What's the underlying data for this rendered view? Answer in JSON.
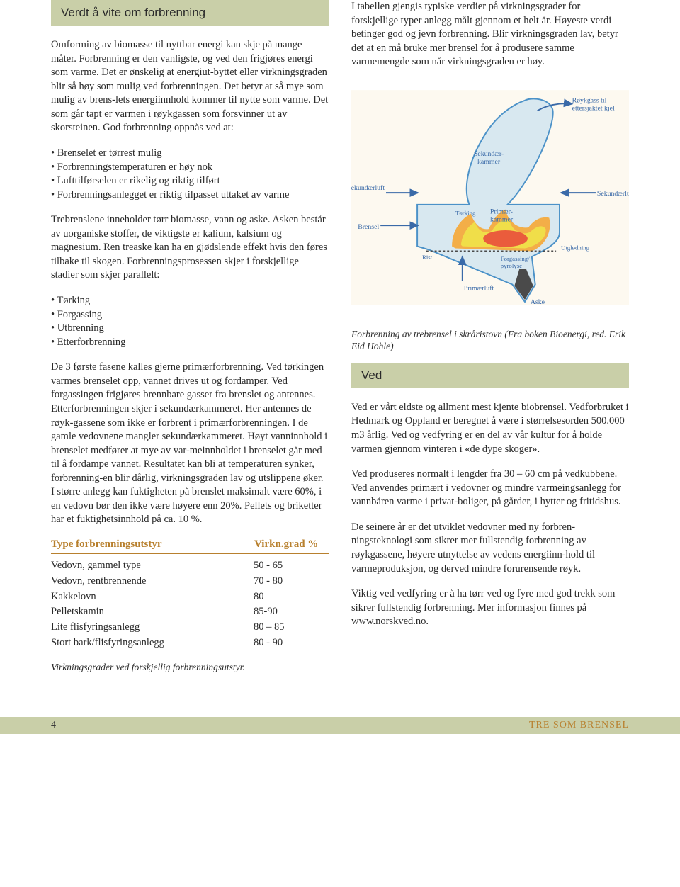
{
  "left": {
    "header": "Verdt å vite om forbrenning",
    "intro": "Omforming av biomasse til nyttbar energi kan skje på mange måter. Forbrenning er den vanligste, og ved den frigjøres energi som varme. Det er ønskelig at energiut-byttet eller virkningsgraden blir så høy som mulig ved forbrenningen. Det betyr at så mye som mulig av brens-lets energiinnhold kommer til nytte som varme. Det som går tapt er varmen i røykgassen som forsvinner ut av skorsteinen. God forbrenning oppnås ved at:",
    "bullets1": [
      "Brenselet er tørrest mulig",
      "Forbrenningstemperaturen er høy nok",
      "Lufttilførselen er rikelig og riktig tilført",
      "Forbrenningsanlegget er riktig tilpasset uttaket av varme"
    ],
    "para2": "Trebrenslene inneholder tørr biomasse, vann og aske. Asken består av uorganiske stoffer, de viktigste er kalium, kalsium og magnesium. Ren treaske kan ha en gjødslende effekt hvis den føres tilbake til skogen. Forbrenningsprosessen skjer i forskjellige stadier som skjer parallelt:",
    "bullets2": [
      "Tørking",
      "Forgassing",
      "Utbrenning",
      "Etterforbrenning"
    ],
    "para3": "De 3 første fasene kalles gjerne primærforbrenning. Ved tørkingen varmes brenselet opp, vannet drives ut og fordamper. Ved forgassingen frigjøres brennbare gasser fra brenslet og antennes. Etterforbrenningen skjer i sekundærkammeret. Her antennes de røyk-gassene som ikke er forbrent i primærforbrenningen. I de gamle vedovnene mangler sekundærkammeret. Høyt vanninnhold i brenselet medfører at mye av var-meinnholdet i brenselet går med til å fordampe vannet. Resultatet kan bli at temperaturen synker, forbrenning-en blir dårlig, virkningsgraden lav og utslippene øker. I større anlegg kan fuktigheten på brenslet maksimalt være 60%, i en vedovn bør den ikke være høyere enn 20%. Pellets og briketter har et fuktighetsinnhold på ca. 10 %.",
    "table": {
      "header_left": "Type forbrenningsutstyr",
      "header_right": "Virkn.grad %",
      "rows": [
        [
          "Vedovn, gammel type",
          "50 - 65"
        ],
        [
          "Vedovn, rentbrennende",
          "70 - 80"
        ],
        [
          "Kakkelovn",
          "80"
        ],
        [
          "Pelletskamin",
          "85-90"
        ],
        [
          "Lite flisfyringsanlegg",
          "80 – 85"
        ],
        [
          "Stort bark/flisfyringsanlegg",
          "80 - 90"
        ]
      ]
    },
    "table_caption": "Virkningsgrader ved forskjellig forbrenningsutstyr."
  },
  "right": {
    "intro": "I tabellen gjengis typiske verdier på virkningsgrader for forskjellige typer anlegg målt gjennom et helt år. Høyeste verdi betinger god og jevn forbrenning. Blir virkningsgraden lav, betyr det at en må bruke mer brensel for å produsere samme varmemengde som når virkningsgraden er høy.",
    "diagram": {
      "labels": {
        "roykgass": "Røykgass til ettersjaktet kjel",
        "sekundaerkammer": "Sekundær-kammer",
        "sekundaerluft_l": "Sekundærluft",
        "sekundaerluft_r": "Sekundærluft",
        "torking": "Tørking",
        "primaerkammer": "Primær-kammer",
        "brensel": "Brensel",
        "rist": "Rist",
        "forgassing": "Forgassing/pyrolyse",
        "utglodning": "Utglødning",
        "primaerluft": "Primærluft",
        "aske": "Aske"
      },
      "colors": {
        "bg": "#fdf9f0",
        "body": "#d8e8f0",
        "outline": "#4c92c8",
        "flame_outer": "#f5a83a",
        "flame_mid": "#f0e24a",
        "flame_inner": "#e84a3a",
        "ash": "#4a4a4a",
        "label_text": "#3a6aa8",
        "arrow": "#3a6aa8"
      }
    },
    "diagram_caption": "Forbrenning av trebrensel i skråristovn\n(Fra boken Bioenergi, red. Erik Eid Hohle)",
    "header_ved": "Ved",
    "ved_p1": "Ved er vårt eldste og allment mest kjente biobrensel. Vedforbruket i Hedmark og Oppland er beregnet å være i størrelsesorden 500.000 m3 årlig. Ved og vedfyring er en del av vår kultur for å holde varmen gjennom vinteren i «de dype skoger».",
    "ved_p2": "Ved produseres normalt i lengder fra 30 – 60 cm på vedkubbene. Ved anvendes primært i vedovner og mindre varmeingsanlegg for vannbåren varme i privat-boliger, på gårder, i hytter og fritidshus.",
    "ved_p3": "De seinere år er det utviklet vedovner med ny forbren-ningsteknologi som sikrer mer fullstendig forbrenning av røykgassene, høyere utnyttelse av vedens energiinn-hold til varmeproduksjon, og derved mindre forurensende røyk.",
    "ved_p4_a": "Viktig ved vedfyring er å ha tørr ved og fyre med god trekk som sikrer fullstendig forbrenning. Mer informasjon finnes på ",
    "ved_p4_link": "www.norskved.no",
    "ved_p4_b": "."
  },
  "footer": {
    "page": "4",
    "title": "TRE SOM BRENSEL"
  }
}
